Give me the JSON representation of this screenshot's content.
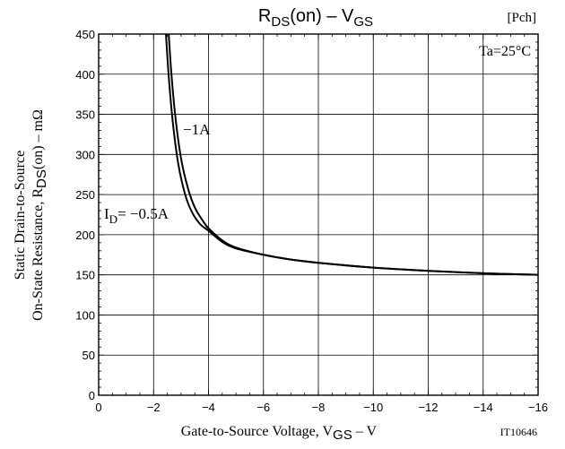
{
  "title": {
    "main": "R",
    "main_sub": "DS",
    "main_mid": "(on)  –  V",
    "main_sub2": "GS",
    "tag": "[Pch]"
  },
  "condition": "Ta=25°C",
  "code": "IT10646",
  "xaxis": {
    "label": "Gate-to-Source Voltage, V",
    "label_sub": "GS",
    "label_unit": "  –  V"
  },
  "yaxis": {
    "line1": "Static Drain-to-Source",
    "line2": "On-State Resistance, R",
    "line2_sub": "DS",
    "line2_end": "(on)  –  mΩ"
  },
  "annotations": {
    "curve1_label": "−1A",
    "curve2_main": "I",
    "curve2_sub": "D",
    "curve2_rest": "= −0.5A"
  },
  "chart_data": {
    "type": "line",
    "xlim": [
      0,
      -16
    ],
    "ylim": [
      0,
      450
    ],
    "x_ticks": [
      0,
      -2,
      -4,
      -6,
      -8,
      -10,
      -12,
      -14,
      -16
    ],
    "x_tick_labels": [
      "0",
      "−2",
      "−4",
      "−6",
      "−8",
      "−10",
      "−12",
      "−14",
      "−16"
    ],
    "y_ticks": [
      0,
      50,
      100,
      150,
      200,
      250,
      300,
      350,
      400,
      450
    ],
    "y_tick_labels": [
      "0",
      "50",
      "100",
      "150",
      "200",
      "250",
      "300",
      "350",
      "400",
      "450"
    ],
    "grid": true,
    "series": [
      {
        "name": "−1A",
        "x": [
          -2.55,
          -2.65,
          -2.8,
          -3.0,
          -3.25,
          -3.5,
          -3.8,
          -4.0,
          -4.5,
          -5.0,
          -6.0,
          -7.0,
          -8.0,
          -10.0,
          -12.0,
          -14.0,
          -16.0
        ],
        "y": [
          450,
          400,
          345,
          295,
          258,
          234,
          217,
          208,
          193,
          184,
          175,
          169,
          165,
          159,
          155,
          152,
          150
        ]
      },
      {
        "name": "I D= −0.5A",
        "x": [
          -2.45,
          -2.55,
          -2.7,
          -2.9,
          -3.15,
          -3.4,
          -3.7,
          -4.0,
          -4.5,
          -5.0,
          -6.0,
          -7.0,
          -8.0,
          -10.0,
          -12.0,
          -14.0,
          -16.0
        ],
        "y": [
          450,
          398,
          340,
          288,
          250,
          228,
          213,
          205,
          191,
          183,
          175,
          169,
          165,
          159,
          155,
          152,
          150
        ]
      }
    ]
  }
}
